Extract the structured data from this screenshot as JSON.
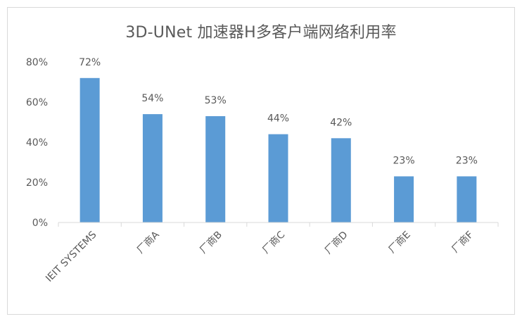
{
  "chart_data": {
    "type": "bar",
    "title": "3D-UNet 加速器H多客户端网络利用率",
    "xlabel": "",
    "ylabel": "",
    "categories": [
      "IEIT SYSTEMS",
      "厂商A",
      "厂商B",
      "厂商C",
      "厂商D",
      "厂商E",
      "厂商F"
    ],
    "values": [
      72,
      54,
      53,
      44,
      42,
      23,
      23
    ],
    "data_labels": [
      "72%",
      "54%",
      "53%",
      "44%",
      "42%",
      "23%",
      "23%"
    ],
    "ylim": [
      0,
      80
    ],
    "yticks": [
      0,
      20,
      40,
      60,
      80
    ],
    "ytick_labels": [
      "0%",
      "20%",
      "40%",
      "60%",
      "80%"
    ],
    "grid": false,
    "legend": "none",
    "bar_color": "#5b9bd5",
    "text_color": "#595959",
    "axis_color": "#d9d9d9"
  }
}
